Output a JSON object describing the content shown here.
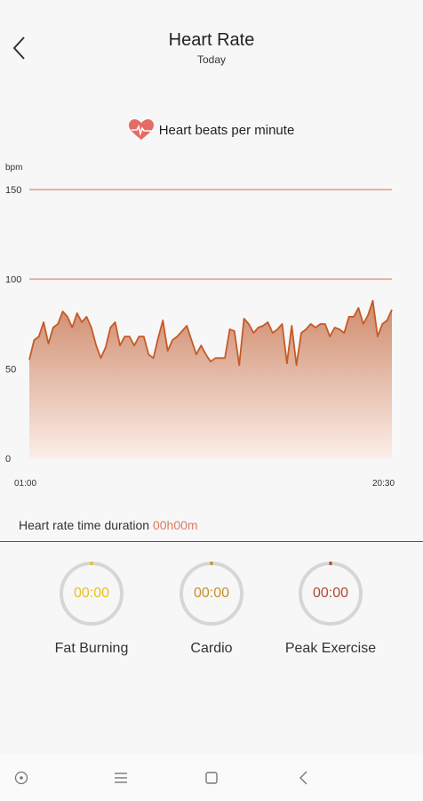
{
  "header": {
    "title": "Heart Rate",
    "subtitle": "Today"
  },
  "chart_heading": "Heart beats per minute",
  "chart_data": {
    "type": "area",
    "ylabel": "bpm",
    "ylim": [
      0,
      150
    ],
    "y_ticks": [
      "0",
      "50",
      "100",
      "150"
    ],
    "x_tick_labels": [
      "01:00",
      "20:30"
    ],
    "grid": true,
    "legend": "none",
    "values": [
      55,
      66,
      68,
      76,
      64,
      73,
      75,
      82,
      79,
      73,
      81,
      76,
      79,
      73,
      63,
      56,
      62,
      73,
      76,
      63,
      68,
      68,
      63,
      68,
      68,
      58,
      56,
      67,
      77,
      60,
      66,
      68,
      71,
      74,
      66,
      58,
      63,
      58,
      54,
      56,
      56,
      56,
      72,
      71,
      52,
      78,
      75,
      70,
      73,
      74,
      76,
      70,
      72,
      75,
      53,
      74,
      52,
      70,
      72,
      75,
      73,
      75,
      75,
      68,
      73,
      72,
      70,
      79,
      79,
      84,
      75,
      80,
      88,
      68,
      75,
      77,
      83
    ],
    "colors": {
      "line": "#c65a26",
      "fill_top": "#cf8b6c",
      "fill_bottom": "#fbeee8",
      "grid": "#c9704a"
    }
  },
  "duration": {
    "label": "Heart rate time duration",
    "value": "00h00m"
  },
  "zones": [
    {
      "label": "Fat Burning",
      "time": "00:00",
      "color": "#e8c021"
    },
    {
      "label": "Cardio",
      "time": "00:00",
      "color": "#c4902a"
    },
    {
      "label": "Peak Exercise",
      "time": "00:00",
      "color": "#b14a2a"
    }
  ],
  "nav": {
    "icons": [
      "circle-dot-icon",
      "menu-icon",
      "square-icon",
      "back-chevron-icon"
    ]
  }
}
